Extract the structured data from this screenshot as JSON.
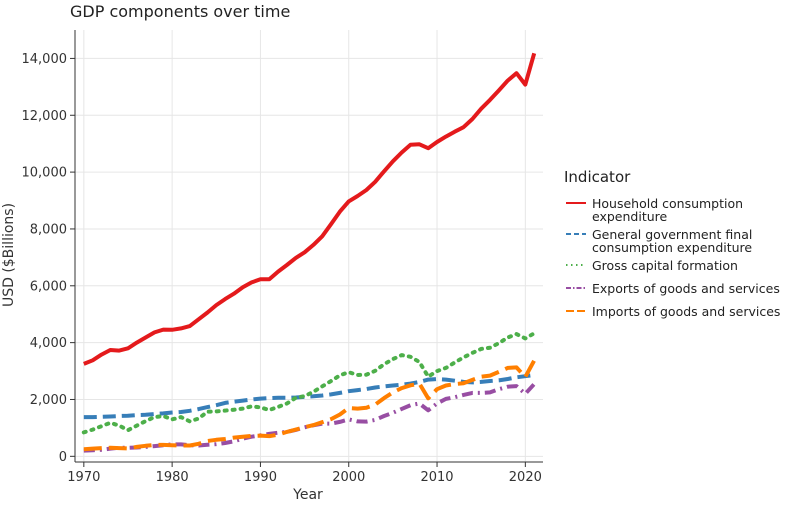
{
  "chart_data": {
    "type": "line",
    "title": "GDP components over time",
    "xlabel": "Year",
    "ylabel": "USD ($Billions)",
    "xlim": [
      1969,
      2022
    ],
    "ylim": [
      -200,
      15000
    ],
    "xticks": [
      1970,
      1980,
      1990,
      2000,
      2010,
      2020
    ],
    "xtick_labels": [
      "1970",
      "1980",
      "1990",
      "2000",
      "2010",
      "2020"
    ],
    "yticks": [
      0,
      2000,
      4000,
      6000,
      8000,
      10000,
      12000,
      14000
    ],
    "ytick_labels": [
      "0",
      "2,000",
      "4,000",
      "6,000",
      "8,000",
      "10,000",
      "12,000",
      "14,000"
    ],
    "grid": true,
    "legend_title": "Indicator",
    "legend_position": "right",
    "x": [
      1970,
      1971,
      1972,
      1973,
      1974,
      1975,
      1976,
      1977,
      1978,
      1979,
      1980,
      1981,
      1982,
      1983,
      1984,
      1985,
      1986,
      1987,
      1988,
      1989,
      1990,
      1991,
      1992,
      1993,
      1994,
      1995,
      1996,
      1997,
      1998,
      1999,
      2000,
      2001,
      2002,
      2003,
      2004,
      2005,
      2006,
      2007,
      2008,
      2009,
      2010,
      2011,
      2012,
      2013,
      2014,
      2015,
      2016,
      2017,
      2018,
      2019,
      2020,
      2021
    ],
    "series": [
      {
        "name": "Household consumption expenditure",
        "label_lines": [
          "Household consumption",
          "expenditure"
        ],
        "color": "#e41a1c",
        "dash": "solid",
        "values": [
          3250,
          3380,
          3580,
          3740,
          3720,
          3800,
          4000,
          4180,
          4360,
          4460,
          4450,
          4500,
          4580,
          4820,
          5060,
          5320,
          5530,
          5720,
          5950,
          6120,
          6230,
          6230,
          6500,
          6730,
          6980,
          7180,
          7440,
          7740,
          8170,
          8610,
          8970,
          9160,
          9370,
          9660,
          10030,
          10380,
          10690,
          10960,
          10980,
          10840,
          11060,
          11250,
          11420,
          11580,
          11870,
          12230,
          12540,
          12870,
          13220,
          13480,
          13080,
          14180
        ]
      },
      {
        "name": "General government final consumption expenditure",
        "label_lines": [
          "General government final",
          "consumption expenditure"
        ],
        "color": "#377eb8",
        "dash": "dashed",
        "values": [
          1380,
          1380,
          1390,
          1400,
          1420,
          1430,
          1450,
          1460,
          1490,
          1510,
          1540,
          1560,
          1600,
          1660,
          1730,
          1800,
          1880,
          1920,
          1960,
          2000,
          2030,
          2050,
          2060,
          2060,
          2070,
          2090,
          2110,
          2140,
          2180,
          2230,
          2290,
          2330,
          2370,
          2420,
          2460,
          2490,
          2520,
          2560,
          2620,
          2700,
          2720,
          2700,
          2660,
          2620,
          2600,
          2620,
          2650,
          2670,
          2720,
          2780,
          2820,
          2860
        ]
      },
      {
        "name": "Gross capital formation",
        "label_lines": [
          "Gross capital formation"
        ],
        "color": "#4daf4a",
        "dash": "dotted",
        "values": [
          840,
          940,
          1060,
          1180,
          1080,
          920,
          1080,
          1240,
          1380,
          1420,
          1300,
          1380,
          1230,
          1330,
          1570,
          1580,
          1610,
          1640,
          1680,
          1760,
          1720,
          1630,
          1740,
          1860,
          2060,
          2120,
          2270,
          2460,
          2650,
          2850,
          2960,
          2860,
          2870,
          3010,
          3240,
          3420,
          3560,
          3500,
          3320,
          2800,
          3000,
          3110,
          3300,
          3480,
          3640,
          3780,
          3820,
          3980,
          4180,
          4300,
          4150,
          4330
        ]
      },
      {
        "name": "Exports of goods and services",
        "label_lines": [
          "Exports of goods and services"
        ],
        "color": "#984ea3",
        "dash": "dashdot",
        "values": [
          200,
          210,
          230,
          270,
          300,
          300,
          310,
          330,
          360,
          390,
          420,
          420,
          390,
          380,
          410,
          430,
          470,
          530,
          620,
          690,
          740,
          790,
          830,
          860,
          930,
          1020,
          1090,
          1150,
          1150,
          1210,
          1300,
          1230,
          1220,
          1280,
          1420,
          1530,
          1670,
          1800,
          1860,
          1620,
          1860,
          2020,
          2080,
          2160,
          2230,
          2230,
          2250,
          2360,
          2450,
          2470,
          2200,
          2540
        ]
      },
      {
        "name": "Imports of goods and services",
        "label_lines": [
          "Imports of goods and services"
        ],
        "color": "#ff7f00",
        "dash": "longdash",
        "values": [
          250,
          270,
          290,
          300,
          290,
          280,
          330,
          370,
          400,
          400,
          390,
          380,
          380,
          440,
          540,
          580,
          610,
          660,
          690,
          720,
          730,
          710,
          760,
          860,
          940,
          1020,
          1100,
          1200,
          1310,
          1470,
          1700,
          1680,
          1710,
          1820,
          2050,
          2250,
          2400,
          2500,
          2560,
          2040,
          2360,
          2490,
          2540,
          2570,
          2690,
          2800,
          2840,
          2970,
          3110,
          3130,
          2790,
          3370
        ]
      }
    ]
  }
}
